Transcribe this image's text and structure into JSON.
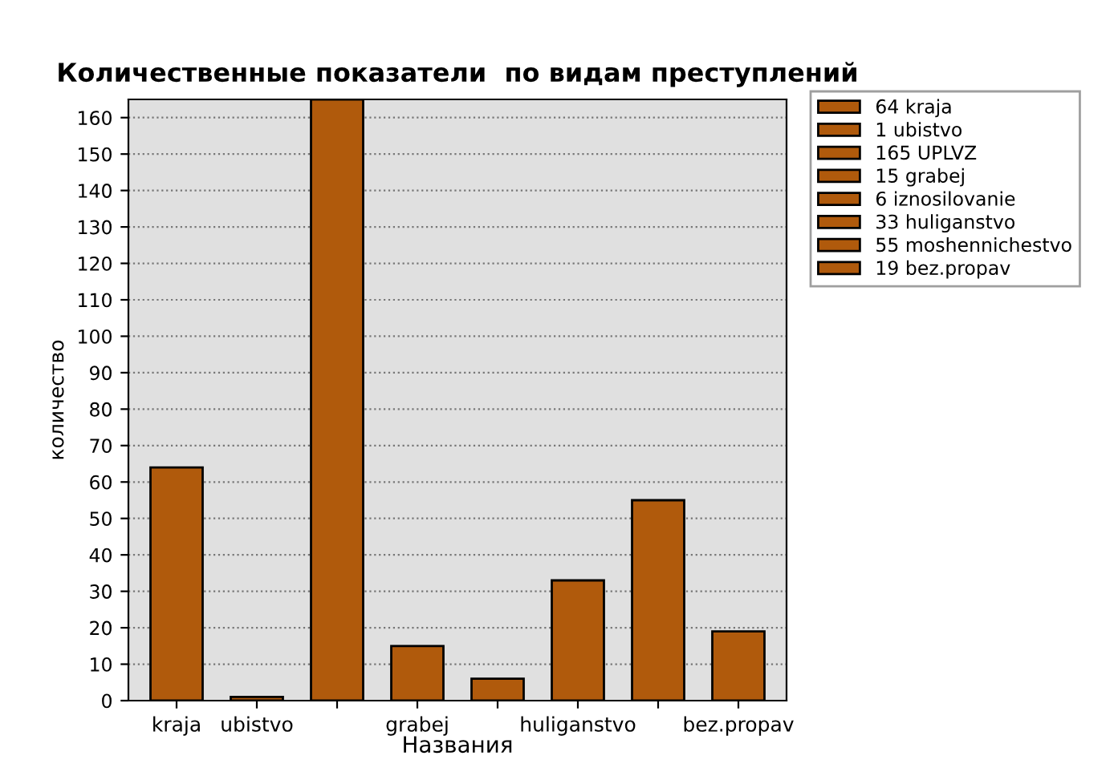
{
  "chart_data": {
    "type": "bar",
    "title": "Количественные показатели  по видам преступлений",
    "xlabel": "Названия",
    "ylabel": "количество",
    "categories": [
      "kraja",
      "ubistvo",
      null,
      "grabej",
      null,
      "huliganstvo",
      null,
      "bez.propav"
    ],
    "series": [
      {
        "name": "64 kraja",
        "color": "#b05a0c",
        "values": [
          64,
          null,
          null,
          null,
          null,
          null,
          null,
          null
        ]
      },
      {
        "name": "1 ubistvo",
        "color": "#b05a0c",
        "values": [
          null,
          1,
          null,
          null,
          null,
          null,
          null,
          null
        ]
      },
      {
        "name": "165 UPLVZ",
        "color": "#b05a0c",
        "values": [
          null,
          null,
          165,
          null,
          null,
          null,
          null,
          null
        ]
      },
      {
        "name": "15 grabej",
        "color": "#b05a0c",
        "values": [
          null,
          null,
          null,
          15,
          null,
          null,
          null,
          null
        ]
      },
      {
        "name": "6 iznosilovanie",
        "color": "#b05a0c",
        "values": [
          null,
          null,
          null,
          null,
          6,
          null,
          null,
          null
        ]
      },
      {
        "name": "33 huliganstvo",
        "color": "#b05a0c",
        "values": [
          null,
          null,
          null,
          null,
          null,
          33,
          null,
          null
        ]
      },
      {
        "name": "55 moshennichestvo",
        "color": "#b05a0c",
        "values": [
          null,
          null,
          null,
          null,
          null,
          null,
          55,
          null
        ]
      },
      {
        "name": "19 bez.propav",
        "color": "#b05a0c",
        "values": [
          null,
          null,
          null,
          null,
          null,
          null,
          null,
          19
        ]
      }
    ],
    "ylim": [
      0,
      165
    ],
    "yticks": [
      0,
      10,
      20,
      30,
      40,
      50,
      60,
      70,
      80,
      90,
      100,
      110,
      120,
      130,
      140,
      150,
      160
    ],
    "grid": "y",
    "legend": "top right"
  }
}
